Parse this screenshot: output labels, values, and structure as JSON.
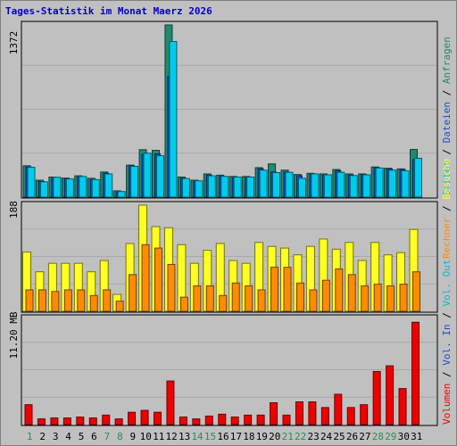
{
  "chart_data": [
    {
      "type": "bar",
      "title": "Tages-Statistik im Monat Maerz 2026",
      "ylabel": "1372",
      "ymax": 1372,
      "categories": [
        "1",
        "2",
        "3",
        "4",
        "5",
        "6",
        "7",
        "8",
        "9",
        "10",
        "11",
        "12",
        "13",
        "14",
        "15",
        "16",
        "17",
        "18",
        "19",
        "20",
        "21",
        "22",
        "23",
        "24",
        "25",
        "26",
        "27",
        "28",
        "29",
        "30",
        "31"
      ],
      "weekend_days": [
        "1",
        "7",
        "8",
        "14",
        "15",
        "21",
        "22",
        "28",
        "29"
      ],
      "legend": [
        {
          "label": "Anfragen",
          "color": "#1f8a6e"
        },
        {
          "label": "Dateien",
          "color": "#1a4fd6"
        },
        {
          "label": "Seiten",
          "color": "#00ccee"
        }
      ],
      "series": [
        {
          "name": "Anfragen",
          "color": "#1f8a6e",
          "values": [
            250,
            135,
            160,
            152,
            170,
            150,
            200,
            50,
            255,
            378,
            373,
            1372,
            160,
            135,
            185,
            175,
            165,
            165,
            235,
            265,
            215,
            180,
            190,
            185,
            220,
            185,
            185,
            240,
            230,
            225,
            380
          ]
        },
        {
          "name": "Dateien",
          "color": "#1a4fd6",
          "values": [
            240,
            125,
            150,
            145,
            160,
            140,
            190,
            40,
            250,
            340,
            345,
            960,
            150,
            125,
            175,
            165,
            155,
            155,
            225,
            200,
            200,
            170,
            180,
            175,
            210,
            175,
            180,
            235,
            225,
            220,
            300
          ]
        },
        {
          "name": "Seiten",
          "color": "#00ccee",
          "values": [
            238,
            122,
            158,
            145,
            165,
            140,
            185,
            45,
            245,
            350,
            330,
            1240,
            148,
            130,
            170,
            165,
            160,
            160,
            215,
            195,
            198,
            150,
            185,
            178,
            198,
            172,
            178,
            232,
            215,
            210,
            310
          ]
        }
      ]
    },
    {
      "type": "bar",
      "ylabel": "188",
      "ymax": 188,
      "legend": [
        {
          "label": "Besuche",
          "color": "#ffff22"
        },
        {
          "label": "Rechner",
          "color": "#ff8c00"
        }
      ],
      "series": [
        {
          "name": "Besuche",
          "color": "#ffff22",
          "values": [
            105,
            70,
            85,
            85,
            85,
            70,
            90,
            30,
            120,
            188,
            150,
            148,
            118,
            85,
            108,
            120,
            90,
            85,
            122,
            115,
            112,
            100,
            115,
            128,
            110,
            122,
            90,
            122,
            100,
            104,
            145
          ]
        },
        {
          "name": "Rechner",
          "color": "#ff8c00",
          "values": [
            38,
            38,
            35,
            38,
            38,
            28,
            38,
            18,
            65,
            118,
            112,
            83,
            25,
            45,
            45,
            28,
            50,
            45,
            38,
            78,
            78,
            50,
            38,
            55,
            75,
            65,
            45,
            48,
            45,
            48,
            70
          ]
        }
      ]
    },
    {
      "type": "bar",
      "ylabel": "11.20 MB",
      "ymax": 11.2,
      "legend": [
        {
          "label": "Volumen",
          "color": "#ee0000"
        },
        {
          "label": "Vol. In",
          "color": "#1a4fd6"
        },
        {
          "label": "Vol. Out",
          "color": "#00bbdd"
        }
      ],
      "series": [
        {
          "name": "Volumen",
          "color": "#ee0000",
          "values": [
            2.1,
            0.6,
            0.7,
            0.7,
            0.8,
            0.7,
            1.0,
            0.6,
            1.3,
            1.5,
            1.3,
            4.6,
            0.8,
            0.6,
            0.9,
            1.1,
            0.8,
            1.0,
            1.0,
            2.3,
            1.0,
            2.4,
            2.4,
            1.8,
            3.2,
            1.8,
            2.1,
            5.6,
            6.2,
            3.8,
            10.8
          ]
        }
      ]
    }
  ]
}
